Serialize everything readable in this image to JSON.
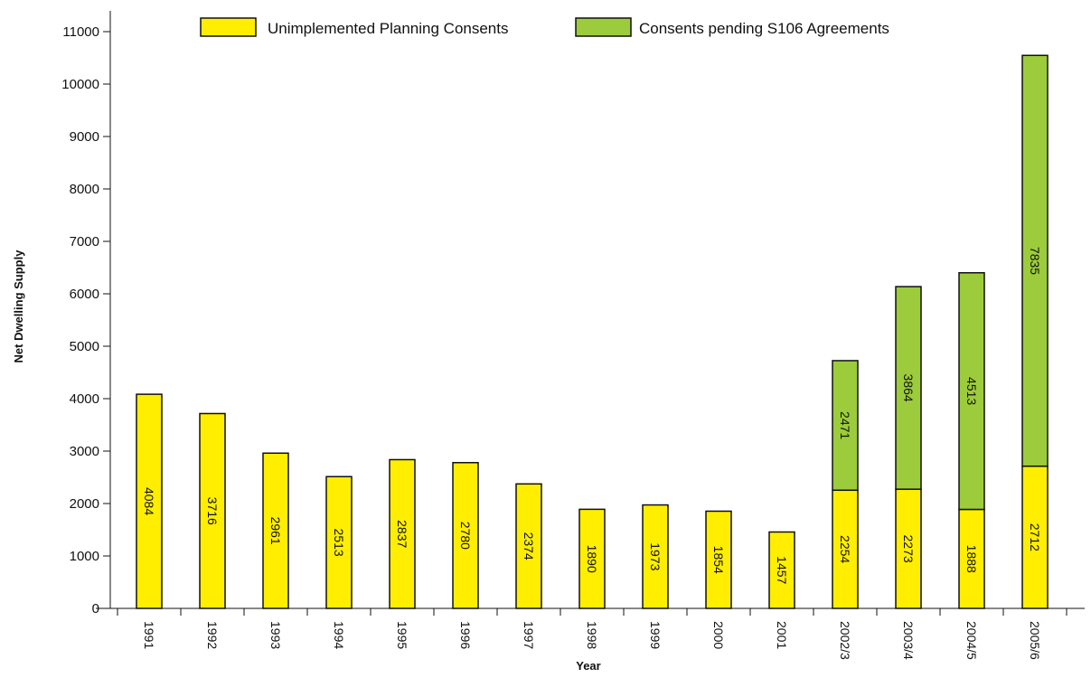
{
  "chart_data": {
    "type": "bar",
    "stacked": true,
    "title": "",
    "xlabel": "Year",
    "ylabel": "Net Dwelling Supply",
    "ylim": [
      0,
      11000
    ],
    "yticks": [
      0,
      1000,
      2000,
      3000,
      4000,
      5000,
      6000,
      7000,
      8000,
      9000,
      10000,
      11000
    ],
    "grid": false,
    "legend_position": "top",
    "categories": [
      "1991",
      "1992",
      "1993",
      "1994",
      "1995",
      "1996",
      "1997",
      "1998",
      "1999",
      "2000",
      "2001",
      "2002/3",
      "2003/4",
      "2004/5",
      "2005/6"
    ],
    "series": [
      {
        "name": "Unimplemented Planning Consents",
        "color": "#ffee00",
        "values": [
          4084,
          3716,
          2961,
          2513,
          2837,
          2780,
          2374,
          1890,
          1973,
          1854,
          1457,
          2254,
          2273,
          1888,
          2712
        ],
        "labels": [
          "4084",
          "3716",
          "2961",
          "2513",
          "2837",
          "2780",
          "2374",
          "1890",
          "1973",
          "1854",
          "1457",
          "2254",
          "2273",
          "1888",
          "2712"
        ]
      },
      {
        "name": "Consents pending S106 Agreements",
        "color": "#9ccc3c",
        "values": [
          0,
          0,
          0,
          0,
          0,
          0,
          0,
          0,
          0,
          0,
          0,
          2471,
          3864,
          4513,
          7835
        ],
        "labels": [
          "",
          "",
          "",
          "",
          "",
          "",
          "",
          "",
          "",
          "",
          "",
          "2471",
          "3864",
          "4513",
          "7835"
        ]
      }
    ]
  }
}
